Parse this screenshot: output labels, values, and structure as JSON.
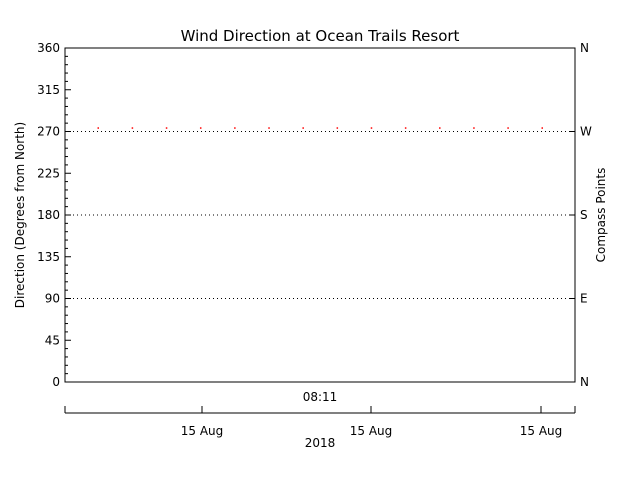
{
  "chart_data": {
    "type": "scatter",
    "title": "Wind Direction at Ocean Trails Resort",
    "ylabel": "Direction (Degrees from North)",
    "ylabel_right": "Compass Points",
    "ylim": [
      0,
      360
    ],
    "yticks": [
      0,
      45,
      90,
      135,
      180,
      225,
      270,
      315,
      360
    ],
    "y_right_ticks": [
      {
        "value": 0,
        "label": "N"
      },
      {
        "value": 90,
        "label": "E"
      },
      {
        "value": 180,
        "label": "S"
      },
      {
        "value": 270,
        "label": "W"
      },
      {
        "value": 360,
        "label": "N"
      }
    ],
    "reference_lines": [
      90,
      180,
      270
    ],
    "time_label": "08:11",
    "date_ticks": [
      "15 Aug",
      "15 Aug",
      "15 Aug"
    ],
    "year_label": "2018",
    "series": [
      {
        "values": [
          274,
          274,
          274,
          274,
          274,
          274,
          274,
          274,
          274,
          274,
          274,
          274,
          274,
          274
        ],
        "color": "#ff0000"
      }
    ]
  }
}
